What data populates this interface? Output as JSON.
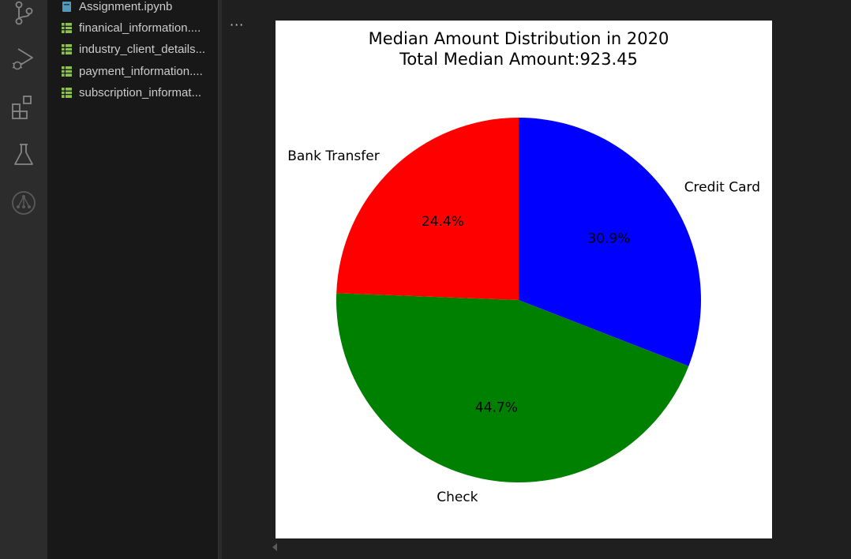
{
  "explorer": {
    "files": [
      {
        "label": "Assignment.ipynb",
        "icon": "notebook-file-icon",
        "color": "#519aba"
      },
      {
        "label": "finanical_information....",
        "icon": "csv-file-icon",
        "color": "#8bc34a"
      },
      {
        "label": "industry_client_details...",
        "icon": "csv-file-icon",
        "color": "#8bc34a"
      },
      {
        "label": "payment_information....",
        "icon": "csv-file-icon",
        "color": "#8bc34a"
      },
      {
        "label": "subscription_informat...",
        "icon": "csv-file-icon",
        "color": "#8bc34a"
      }
    ]
  },
  "editor": {
    "more_label": "···"
  },
  "chart_data": {
    "type": "pie",
    "title": "Median Amount Distribution in 2020",
    "subtitle": "Total Median Amount:923.45",
    "slices": [
      {
        "label": "Credit Card",
        "percent": 30.9,
        "percent_label": "30.9%",
        "color": "#0000ff"
      },
      {
        "label": "Check",
        "percent": 44.7,
        "percent_label": "44.7%",
        "color": "#008000"
      },
      {
        "label": "Bank Transfer",
        "percent": 24.4,
        "percent_label": "24.4%",
        "color": "#ff0000"
      }
    ],
    "start_angle_deg": 90,
    "direction": "clockwise"
  }
}
